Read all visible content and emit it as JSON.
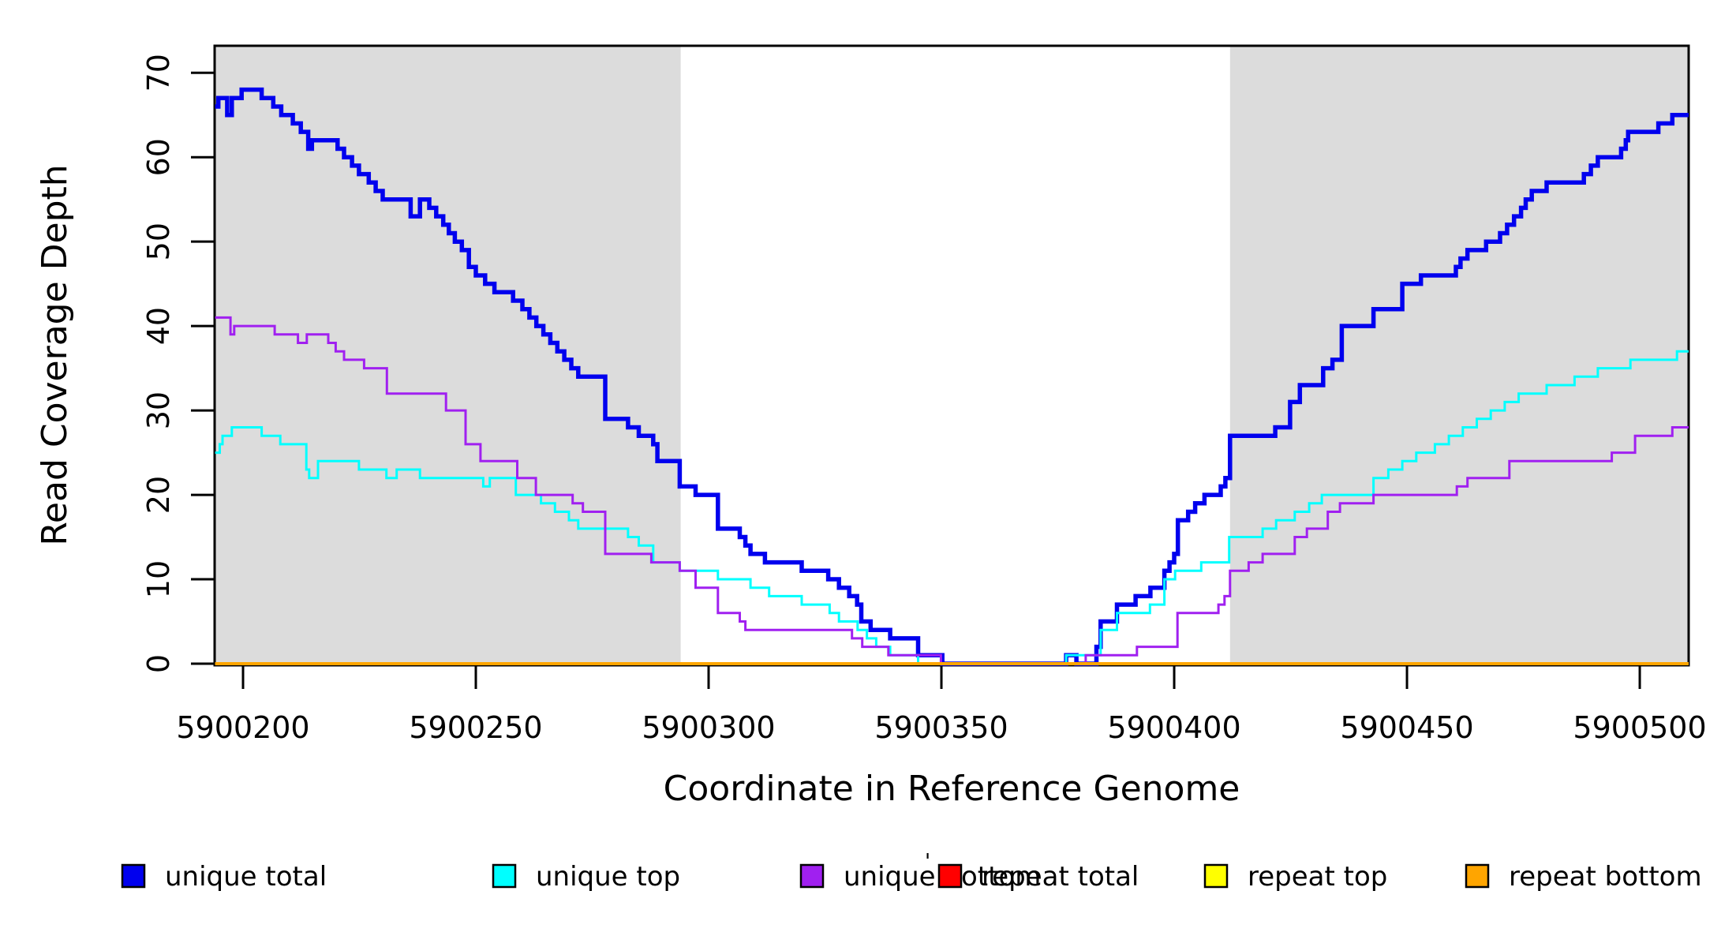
{
  "chart_data": {
    "type": "line",
    "subtype": "step-post",
    "title": "",
    "xlabel": "Coordinate in Reference Genome",
    "ylabel": "Read Coverage Depth",
    "xlim": [
      5900193.9,
      5900510.5
    ],
    "ylim": [
      0,
      73.2
    ],
    "x_ticks": [
      5900200,
      5900250,
      5900300,
      5900350,
      5900400,
      5900450,
      5900500
    ],
    "y_ticks": [
      0,
      10,
      20,
      30,
      40,
      50,
      60,
      70
    ],
    "grid": "off",
    "legend_position": "bottom",
    "background_color": "#FFFFFF",
    "shaded_region_color": "#DCDCDC",
    "shaded_regions": [
      {
        "from": 5900193.9,
        "to": 5900294,
        "meaning": "shaded-band-left"
      },
      {
        "from": 5900412,
        "to": 5900510.5,
        "meaning": "shaded-band-right"
      }
    ],
    "series": [
      {
        "name": "unique total",
        "color": "#0000EE",
        "width": 5.5,
        "points": [
          [
            5900194,
            66
          ],
          [
            5900194.7,
            67
          ],
          [
            5900196.6,
            65
          ],
          [
            5900197.6,
            67
          ],
          [
            5900199.7,
            68
          ],
          [
            5900204,
            67
          ],
          [
            5900206.5,
            66
          ],
          [
            5900208.2,
            65
          ],
          [
            5900210.7,
            64
          ],
          [
            5900212.4,
            63
          ],
          [
            5900214,
            61
          ],
          [
            5900214.8,
            62
          ],
          [
            5900220.3,
            61
          ],
          [
            5900221.7,
            60
          ],
          [
            5900223.4,
            59
          ],
          [
            5900224.9,
            58
          ],
          [
            5900227,
            57
          ],
          [
            5900228.5,
            56
          ],
          [
            5900230,
            55
          ],
          [
            5900236,
            53
          ],
          [
            5900238,
            55
          ],
          [
            5900240,
            54
          ],
          [
            5900241.5,
            53
          ],
          [
            5900243,
            52
          ],
          [
            5900244.2,
            51
          ],
          [
            5900245.5,
            50
          ],
          [
            5900247,
            49
          ],
          [
            5900248.5,
            47
          ],
          [
            5900250,
            46
          ],
          [
            5900252,
            45
          ],
          [
            5900254,
            44
          ],
          [
            5900258,
            43
          ],
          [
            5900260,
            42
          ],
          [
            5900261.5,
            41
          ],
          [
            5900263,
            40
          ],
          [
            5900264.5,
            39
          ],
          [
            5900266,
            38
          ],
          [
            5900267.5,
            37
          ],
          [
            5900269,
            36
          ],
          [
            5900270.5,
            35
          ],
          [
            5900272,
            34
          ],
          [
            5900277.8,
            29
          ],
          [
            5900282.7,
            28
          ],
          [
            5900285,
            27
          ],
          [
            5900288.1,
            26
          ],
          [
            5900289,
            24
          ],
          [
            5900293.8,
            21
          ],
          [
            5900297.2,
            20
          ],
          [
            5900302,
            16
          ],
          [
            5900306.7,
            15
          ],
          [
            5900307.9,
            14
          ],
          [
            5900309,
            13
          ],
          [
            5900312.1,
            12
          ],
          [
            5900320,
            11
          ],
          [
            5900325.7,
            10
          ],
          [
            5900328,
            9
          ],
          [
            5900330.2,
            8
          ],
          [
            5900331.9,
            7
          ],
          [
            5900332.8,
            5
          ],
          [
            5900334.8,
            4
          ],
          [
            5900339,
            3
          ],
          [
            5900345,
            1
          ],
          [
            5900350.2,
            0
          ],
          [
            5900376.8,
            1
          ],
          [
            5900379,
            0
          ],
          [
            5900383.3,
            2
          ],
          [
            5900384.2,
            5
          ],
          [
            5900387.7,
            7
          ],
          [
            5900391.7,
            8
          ],
          [
            5900394.9,
            9
          ],
          [
            5900397.9,
            11
          ],
          [
            5900399,
            12
          ],
          [
            5900400,
            13
          ],
          [
            5900400.8,
            17
          ],
          [
            5900403,
            18
          ],
          [
            5900404.5,
            19
          ],
          [
            5900406.5,
            20
          ],
          [
            5900410,
            21
          ],
          [
            5900411,
            22
          ],
          [
            5900412,
            27
          ],
          [
            5900421.7,
            28
          ],
          [
            5900424.9,
            31
          ],
          [
            5900427,
            33
          ],
          [
            5900432,
            35
          ],
          [
            5900434,
            36
          ],
          [
            5900436,
            40
          ],
          [
            5900442.8,
            42
          ],
          [
            5900449,
            45
          ],
          [
            5900453,
            46
          ],
          [
            5900460.5,
            47
          ],
          [
            5900461.5,
            48
          ],
          [
            5900463,
            49
          ],
          [
            5900467,
            50
          ],
          [
            5900470,
            51
          ],
          [
            5900471.5,
            52
          ],
          [
            5900473,
            53
          ],
          [
            5900474.5,
            54
          ],
          [
            5900475.5,
            55
          ],
          [
            5900476.8,
            56
          ],
          [
            5900480,
            57
          ],
          [
            5900488,
            58
          ],
          [
            5900489.5,
            59
          ],
          [
            5900491,
            60
          ],
          [
            5900496,
            61
          ],
          [
            5900497,
            62
          ],
          [
            5900497.5,
            63
          ],
          [
            5900504,
            64
          ],
          [
            5900507,
            65
          ]
        ]
      },
      {
        "name": "unique top",
        "color": "#00FFFF",
        "width": 3,
        "points": [
          [
            5900194,
            25
          ],
          [
            5900195,
            26
          ],
          [
            5900195.6,
            27
          ],
          [
            5900197.6,
            28
          ],
          [
            5900204,
            27
          ],
          [
            5900208,
            26
          ],
          [
            5900213.6,
            23
          ],
          [
            5900214.2,
            22
          ],
          [
            5900216.1,
            24
          ],
          [
            5900224.9,
            23
          ],
          [
            5900230.8,
            22
          ],
          [
            5900233,
            23
          ],
          [
            5900238,
            22
          ],
          [
            5900251.6,
            21
          ],
          [
            5900253,
            22
          ],
          [
            5900258.6,
            20
          ],
          [
            5900264,
            19
          ],
          [
            5900267,
            18
          ],
          [
            5900270,
            17
          ],
          [
            5900272,
            16
          ],
          [
            5900282.7,
            15
          ],
          [
            5900285,
            14
          ],
          [
            5900288.1,
            12
          ],
          [
            5900293.8,
            11
          ],
          [
            5900302,
            10
          ],
          [
            5900309,
            9
          ],
          [
            5900313,
            8
          ],
          [
            5900320,
            7
          ],
          [
            5900326,
            6
          ],
          [
            5900328,
            5
          ],
          [
            5900332,
            4
          ],
          [
            5900334,
            3
          ],
          [
            5900336,
            2
          ],
          [
            5900339,
            1
          ],
          [
            5900345,
            0
          ],
          [
            5900376.8,
            1
          ],
          [
            5900384.2,
            4
          ],
          [
            5900387.7,
            6
          ],
          [
            5900394.8,
            7
          ],
          [
            5900397.9,
            10
          ],
          [
            5900400.2,
            11
          ],
          [
            5900405.8,
            12
          ],
          [
            5900411.8,
            15
          ],
          [
            5900419,
            16
          ],
          [
            5900421.9,
            17
          ],
          [
            5900425.9,
            18
          ],
          [
            5900429,
            19
          ],
          [
            5900431.7,
            20
          ],
          [
            5900442.8,
            22
          ],
          [
            5900446,
            23
          ],
          [
            5900449,
            24
          ],
          [
            5900452,
            25
          ],
          [
            5900456,
            26
          ],
          [
            5900459,
            27
          ],
          [
            5900462,
            28
          ],
          [
            5900465,
            29
          ],
          [
            5900468,
            30
          ],
          [
            5900471,
            31
          ],
          [
            5900474,
            32
          ],
          [
            5900480,
            33
          ],
          [
            5900486,
            34
          ],
          [
            5900491,
            35
          ],
          [
            5900498,
            36
          ],
          [
            5900508,
            37
          ]
        ]
      },
      {
        "name": "unique bottom",
        "color": "#A020F0",
        "width": 3,
        "points": [
          [
            5900194,
            41
          ],
          [
            5900197.3,
            39
          ],
          [
            5900198.1,
            40
          ],
          [
            5900206.8,
            39
          ],
          [
            5900211.8,
            38
          ],
          [
            5900213.7,
            39
          ],
          [
            5900218.3,
            38
          ],
          [
            5900219.9,
            37
          ],
          [
            5900221.7,
            36
          ],
          [
            5900226,
            35
          ],
          [
            5900230.9,
            32
          ],
          [
            5900243.6,
            30
          ],
          [
            5900247.8,
            26
          ],
          [
            5900251,
            24
          ],
          [
            5900258.9,
            22
          ],
          [
            5900262.9,
            20
          ],
          [
            5900270.8,
            19
          ],
          [
            5900273,
            18
          ],
          [
            5900277.8,
            13
          ],
          [
            5900287.7,
            12
          ],
          [
            5900293.8,
            11
          ],
          [
            5900297.2,
            9
          ],
          [
            5900302,
            6
          ],
          [
            5900306.7,
            5
          ],
          [
            5900307.9,
            4
          ],
          [
            5900330.8,
            3
          ],
          [
            5900333,
            2
          ],
          [
            5900338.6,
            1
          ],
          [
            5900349.9,
            0
          ],
          [
            5900381,
            1
          ],
          [
            5900392,
            2
          ],
          [
            5900400.7,
            6
          ],
          [
            5900409.5,
            7
          ],
          [
            5900410.8,
            8
          ],
          [
            5900412,
            11
          ],
          [
            5900416,
            12
          ],
          [
            5900419,
            13
          ],
          [
            5900425.9,
            15
          ],
          [
            5900428.5,
            16
          ],
          [
            5900433,
            18
          ],
          [
            5900435.6,
            19
          ],
          [
            5900442.8,
            20
          ],
          [
            5900460.7,
            21
          ],
          [
            5900463,
            22
          ],
          [
            5900472,
            24
          ],
          [
            5900494,
            25
          ],
          [
            5900499,
            27
          ],
          [
            5900507,
            28
          ]
        ]
      },
      {
        "name": "repeat total",
        "color": "#FF0000",
        "width": 2.5,
        "points": [
          [
            5900194,
            0
          ]
        ]
      },
      {
        "name": "repeat top",
        "color": "#FFFF00",
        "width": 2.5,
        "points": [
          [
            5900194,
            0
          ]
        ]
      },
      {
        "name": "repeat bottom",
        "color": "#FFA500",
        "width": 4,
        "points": [
          [
            5900194,
            0
          ]
        ]
      }
    ]
  },
  "legend": {
    "items": [
      {
        "label": "unique total",
        "color": "#0000EE"
      },
      {
        "label": "unique top",
        "color": "#00FFFF"
      },
      {
        "label": "unique bottom",
        "color": "#A020F0"
      },
      {
        "label": "repeat total",
        "color": "#FF0000"
      },
      {
        "label": "repeat top",
        "color": "#FFFF00"
      },
      {
        "label": "repeat bottom",
        "color": "#FFA500"
      }
    ],
    "artifact_mark": "'"
  },
  "axes": {
    "x_title": "Coordinate in Reference Genome",
    "y_title": "Read Coverage Depth",
    "x_tick_labels": [
      "5900200",
      "5900250",
      "5900300",
      "5900350",
      "5900400",
      "5900450",
      "5900500"
    ],
    "y_tick_labels": [
      "0",
      "10",
      "20",
      "30",
      "40",
      "50",
      "60",
      "70"
    ]
  }
}
